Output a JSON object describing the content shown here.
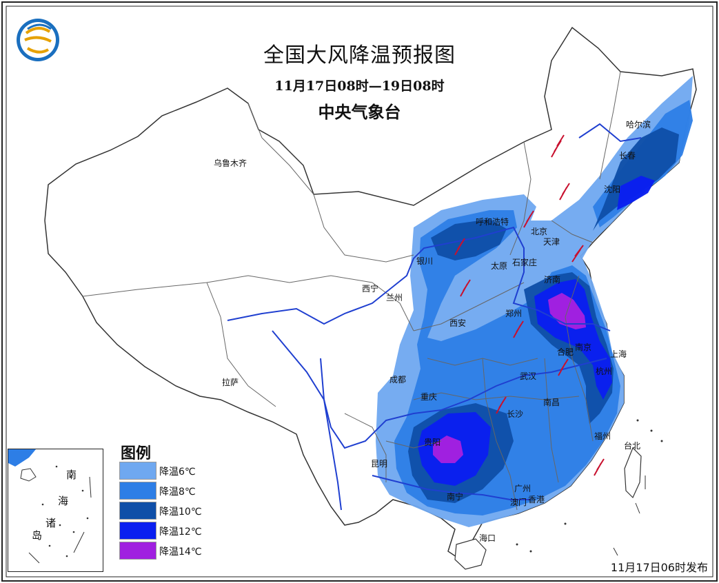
{
  "map": {
    "title": "全国大风降温预报图",
    "period": "11月17日08时—19日08时",
    "issuer": "中央气象台",
    "published": "11月17日06时发布"
  },
  "legend": {
    "title": "图例",
    "items": [
      {
        "label": "降温6℃",
        "color": "#6fa8f0"
      },
      {
        "label": "降温8℃",
        "color": "#2d7ee6"
      },
      {
        "label": "降温10℃",
        "color": "#0f4fa8"
      },
      {
        "label": "降温12℃",
        "color": "#0a1ff0"
      },
      {
        "label": "降温14℃",
        "color": "#a020e0"
      }
    ]
  },
  "inset": {
    "labels": [
      "南",
      "海",
      "诸",
      "岛"
    ]
  },
  "cities": [
    {
      "name": "哈尔滨"
    },
    {
      "name": "长春"
    },
    {
      "name": "沈阳"
    },
    {
      "name": "乌鲁木齐"
    },
    {
      "name": "呼和浩特"
    },
    {
      "name": "北京"
    },
    {
      "name": "天津"
    },
    {
      "name": "银川"
    },
    {
      "name": "太原"
    },
    {
      "name": "石家庄"
    },
    {
      "name": "济南"
    },
    {
      "name": "西宁"
    },
    {
      "name": "兰州"
    },
    {
      "name": "郑州"
    },
    {
      "name": "西安"
    },
    {
      "name": "合肥"
    },
    {
      "name": "南京"
    },
    {
      "name": "上海"
    },
    {
      "name": "拉萨"
    },
    {
      "name": "成都"
    },
    {
      "name": "武汉"
    },
    {
      "name": "杭州"
    },
    {
      "name": "重庆"
    },
    {
      "name": "南昌"
    },
    {
      "name": "长沙"
    },
    {
      "name": "贵阳"
    },
    {
      "name": "福州"
    },
    {
      "name": "台北"
    },
    {
      "name": "昆明"
    },
    {
      "name": "广州"
    },
    {
      "name": "南宁"
    },
    {
      "name": "澳门"
    },
    {
      "name": "香港"
    },
    {
      "name": "海口"
    }
  ]
}
